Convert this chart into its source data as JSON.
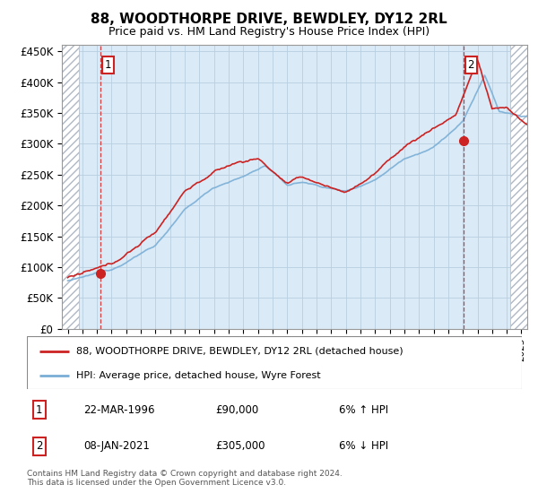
{
  "title": "88, WOODTHORPE DRIVE, BEWDLEY, DY12 2RL",
  "subtitle": "Price paid vs. HM Land Registry's House Price Index (HPI)",
  "ylabel_ticks": [
    "£0",
    "£50K",
    "£100K",
    "£150K",
    "£200K",
    "£250K",
    "£300K",
    "£350K",
    "£400K",
    "£450K"
  ],
  "ytick_values": [
    0,
    50000,
    100000,
    150000,
    200000,
    250000,
    300000,
    350000,
    400000,
    450000
  ],
  "xlim_start": 1993.6,
  "xlim_end": 2025.4,
  "ylim": [
    0,
    460000
  ],
  "background_color": "#daeaf6",
  "grid_color": "#b8cfe0",
  "sale1_x": 1996.22,
  "sale1_y": 90000,
  "sale2_x": 2021.03,
  "sale2_y": 305000,
  "legend_line1": "88, WOODTHORPE DRIVE, BEWDLEY, DY12 2RL (detached house)",
  "legend_line2": "HPI: Average price, detached house, Wyre Forest",
  "table_row1": [
    "1",
    "22-MAR-1996",
    "£90,000",
    "6% ↑ HPI"
  ],
  "table_row2": [
    "2",
    "08-JAN-2021",
    "£305,000",
    "6% ↓ HPI"
  ],
  "footer": "Contains HM Land Registry data © Crown copyright and database right 2024.\nThis data is licensed under the Open Government Licence v3.0.",
  "hpi_color": "#7aaed6",
  "price_color": "#cc2222",
  "dashed_line_color": "#cc2222",
  "hatch_left_end": 1994.75,
  "hatch_right_start": 2024.25
}
